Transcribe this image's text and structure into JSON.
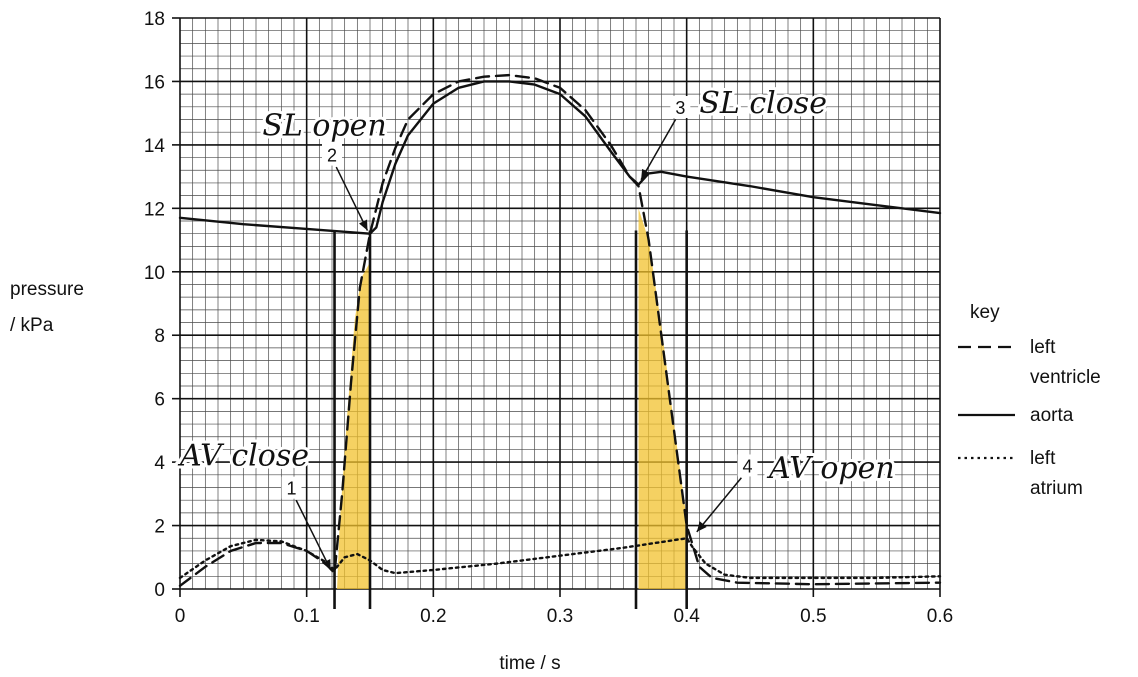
{
  "chart_data": {
    "type": "line",
    "xlabel": "time / s",
    "ylabel_lines": [
      "pressure",
      "/ kPa"
    ],
    "xlim": [
      0,
      0.6
    ],
    "ylim": [
      0,
      18
    ],
    "x_ticks": [
      0,
      0.1,
      0.2,
      0.3,
      0.4,
      0.5,
      0.6
    ],
    "x_tick_labels": [
      "0",
      "0.1",
      "0.2",
      "0.3",
      "0.4",
      "0.5",
      "0.6"
    ],
    "y_ticks": [
      0,
      2,
      4,
      6,
      8,
      10,
      12,
      14,
      16,
      18
    ],
    "y_tick_labels": [
      "0",
      "2",
      "4",
      "6",
      "8",
      "10",
      "12",
      "14",
      "16",
      "18"
    ],
    "grid": true,
    "minor_grid_step": {
      "x": 0.01,
      "y": 0.4
    },
    "legend_position": "right",
    "legend_title": "key",
    "series": [
      {
        "name": "left ventricle",
        "style": "dashed",
        "color": "#111111",
        "points": [
          [
            0,
            0.1
          ],
          [
            0.02,
            0.7
          ],
          [
            0.04,
            1.2
          ],
          [
            0.06,
            1.45
          ],
          [
            0.08,
            1.45
          ],
          [
            0.1,
            1.2
          ],
          [
            0.115,
            0.8
          ],
          [
            0.122,
            0.5
          ],
          [
            0.128,
            3.0
          ],
          [
            0.135,
            6.5
          ],
          [
            0.142,
            9.5
          ],
          [
            0.15,
            11.2
          ],
          [
            0.16,
            12.8
          ],
          [
            0.17,
            13.9
          ],
          [
            0.18,
            14.8
          ],
          [
            0.2,
            15.6
          ],
          [
            0.22,
            16.0
          ],
          [
            0.24,
            16.15
          ],
          [
            0.26,
            16.2
          ],
          [
            0.28,
            16.1
          ],
          [
            0.3,
            15.8
          ],
          [
            0.32,
            15.1
          ],
          [
            0.34,
            14.0
          ],
          [
            0.355,
            13.0
          ],
          [
            0.362,
            12.7
          ],
          [
            0.37,
            11.0
          ],
          [
            0.38,
            8.0
          ],
          [
            0.39,
            5.0
          ],
          [
            0.4,
            2.0
          ],
          [
            0.41,
            0.7
          ],
          [
            0.42,
            0.35
          ],
          [
            0.44,
            0.2
          ],
          [
            0.5,
            0.15
          ],
          [
            0.6,
            0.2
          ]
        ]
      },
      {
        "name": "aorta",
        "style": "solid",
        "color": "#111111",
        "points": [
          [
            0,
            11.7
          ],
          [
            0.05,
            11.5
          ],
          [
            0.1,
            11.35
          ],
          [
            0.15,
            11.2
          ],
          [
            0.155,
            11.4
          ],
          [
            0.16,
            12.2
          ],
          [
            0.17,
            13.4
          ],
          [
            0.18,
            14.3
          ],
          [
            0.2,
            15.3
          ],
          [
            0.22,
            15.8
          ],
          [
            0.24,
            16.0
          ],
          [
            0.26,
            16.0
          ],
          [
            0.28,
            15.9
          ],
          [
            0.3,
            15.6
          ],
          [
            0.32,
            14.9
          ],
          [
            0.34,
            13.8
          ],
          [
            0.355,
            13.0
          ],
          [
            0.362,
            12.75
          ],
          [
            0.37,
            13.1
          ],
          [
            0.38,
            13.15
          ],
          [
            0.4,
            13.0
          ],
          [
            0.45,
            12.7
          ],
          [
            0.5,
            12.35
          ],
          [
            0.55,
            12.1
          ],
          [
            0.6,
            11.85
          ]
        ]
      },
      {
        "name": "left atrium",
        "style": "dotted",
        "color": "#111111",
        "points": [
          [
            0,
            0.35
          ],
          [
            0.02,
            0.9
          ],
          [
            0.04,
            1.35
          ],
          [
            0.06,
            1.55
          ],
          [
            0.08,
            1.5
          ],
          [
            0.1,
            1.2
          ],
          [
            0.115,
            0.85
          ],
          [
            0.122,
            0.6
          ],
          [
            0.13,
            1.0
          ],
          [
            0.14,
            1.1
          ],
          [
            0.15,
            0.9
          ],
          [
            0.16,
            0.6
          ],
          [
            0.17,
            0.5
          ],
          [
            0.2,
            0.6
          ],
          [
            0.25,
            0.8
          ],
          [
            0.3,
            1.05
          ],
          [
            0.35,
            1.3
          ],
          [
            0.4,
            1.6
          ],
          [
            0.405,
            1.3
          ],
          [
            0.415,
            0.8
          ],
          [
            0.43,
            0.45
          ],
          [
            0.45,
            0.35
          ],
          [
            0.5,
            0.35
          ],
          [
            0.55,
            0.35
          ],
          [
            0.6,
            0.4
          ]
        ]
      }
    ],
    "vertical_markers": [
      0.122,
      0.15,
      0.36,
      0.4
    ],
    "shaded_regions": [
      {
        "color": "#f2c12e",
        "opacity": 0.75,
        "points": [
          [
            0.124,
            0
          ],
          [
            0.126,
            2.0
          ],
          [
            0.132,
            5.5
          ],
          [
            0.138,
            8.5
          ],
          [
            0.143,
            9.8
          ],
          [
            0.15,
            10.3
          ],
          [
            0.15,
            0
          ]
        ]
      },
      {
        "color": "#f2c12e",
        "opacity": 0.75,
        "points": [
          [
            0.362,
            0
          ],
          [
            0.362,
            12.0
          ],
          [
            0.37,
            11.0
          ],
          [
            0.38,
            8.3
          ],
          [
            0.39,
            5.2
          ],
          [
            0.4,
            2.2
          ],
          [
            0.4,
            0
          ]
        ]
      }
    ],
    "annotations": [
      {
        "id": "1",
        "text": "1",
        "x": 0.088,
        "y": 3.1,
        "arrow_to": [
          0.119,
          0.6
        ]
      },
      {
        "id": "2",
        "text": "2",
        "x": 0.12,
        "y": 13.6,
        "arrow_to": [
          0.148,
          11.3
        ]
      },
      {
        "id": "3",
        "text": "3",
        "x": 0.395,
        "y": 15.1,
        "arrow_to": [
          0.364,
          12.9
        ]
      },
      {
        "id": "4",
        "text": "4",
        "x": 0.448,
        "y": 3.8,
        "arrow_to": [
          0.408,
          1.8
        ]
      }
    ],
    "handwritten": [
      {
        "text": "SL open",
        "x": 0.065,
        "y": 14.3
      },
      {
        "text": "SL close",
        "x": 0.41,
        "y": 15.0
      },
      {
        "text": "AV close",
        "x": 0.0,
        "y": 3.9
      },
      {
        "text": "AV open",
        "x": 0.465,
        "y": 3.5
      }
    ]
  }
}
